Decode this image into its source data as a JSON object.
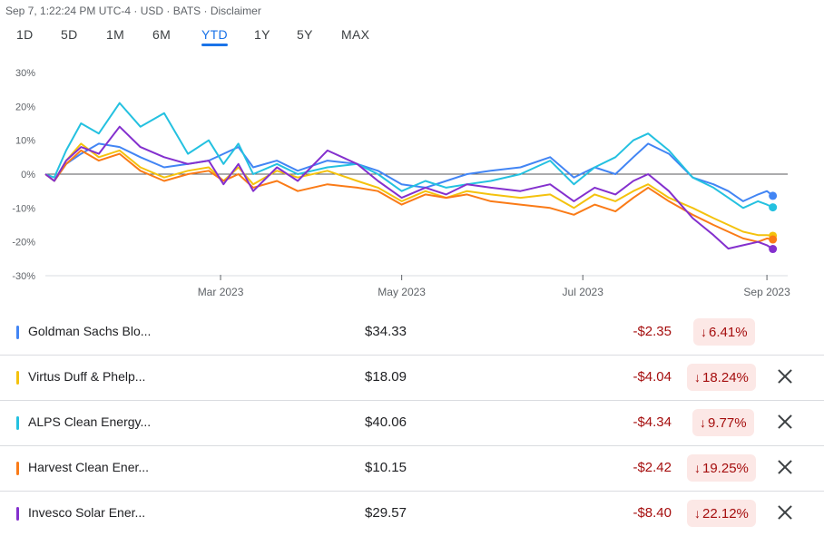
{
  "header": {
    "text": "Sep 7, 1:22:24 PM UTC-4 · USD · BATS · Disclaimer"
  },
  "tabs": [
    {
      "label": "1D"
    },
    {
      "label": "5D"
    },
    {
      "label": "1M"
    },
    {
      "label": "6M"
    },
    {
      "label": "YTD",
      "active": true
    },
    {
      "label": "1Y"
    },
    {
      "label": "5Y"
    },
    {
      "label": "MAX"
    }
  ],
  "rows": [
    {
      "name": "Goldman Sachs Blo...",
      "price": "$34.33",
      "change": "-$2.35",
      "pct": "6.41%",
      "color": "#4285f4",
      "removable": false
    },
    {
      "name": "Virtus Duff & Phelp...",
      "price": "$18.09",
      "change": "-$4.04",
      "pct": "18.24%",
      "color": "#f4c20d",
      "removable": true
    },
    {
      "name": "ALPS Clean Energy...",
      "price": "$40.06",
      "change": "-$4.34",
      "pct": "9.77%",
      "color": "#24c1e0",
      "removable": true
    },
    {
      "name": "Harvest Clean Ener...",
      "price": "$10.15",
      "change": "-$2.42",
      "pct": "19.25%",
      "color": "#fa7b17",
      "removable": true
    },
    {
      "name": "Invesco Solar Ener...",
      "price": "$29.57",
      "change": "-$8.40",
      "pct": "22.12%",
      "color": "#8430ce",
      "removable": true
    }
  ],
  "chart_data": {
    "type": "line",
    "x_ticks": [
      "Mar 2023",
      "May 2023",
      "Jul 2023",
      "Sep 2023"
    ],
    "x_tick_days": [
      59,
      120,
      181,
      243
    ],
    "x_range_days": [
      0,
      250
    ],
    "y_ticks": [
      "30%",
      "20%",
      "10%",
      "0%",
      "-10%",
      "-20%",
      "-30%"
    ],
    "y_tick_values": [
      30,
      20,
      10,
      0,
      -10,
      -20,
      -30
    ],
    "ylim": [
      -30,
      30
    ],
    "series": [
      {
        "name": "Goldman Sachs Blo...",
        "color": "#4285f4",
        "x": [
          0,
          3,
          7,
          12,
          18,
          25,
          32,
          40,
          48,
          55,
          60,
          65,
          70,
          78,
          85,
          95,
          105,
          112,
          120,
          128,
          135,
          142,
          150,
          160,
          170,
          178,
          185,
          192,
          198,
          203,
          210,
          218,
          225,
          230,
          235,
          240,
          243,
          245
        ],
        "y": [
          0,
          -2,
          3,
          6,
          9,
          8,
          5,
          2,
          3,
          4,
          6,
          8,
          2,
          4,
          1,
          4,
          3,
          1,
          -3,
          -4,
          -2,
          0,
          1,
          2,
          5,
          -1,
          2,
          0,
          5,
          9,
          6,
          -1,
          -3,
          -5,
          -8,
          -6,
          -5,
          -6.4
        ]
      },
      {
        "name": "Virtus Duff & Phelp...",
        "color": "#f4c20d",
        "x": [
          0,
          3,
          7,
          12,
          18,
          25,
          32,
          40,
          48,
          55,
          60,
          65,
          70,
          78,
          85,
          95,
          105,
          112,
          120,
          128,
          135,
          142,
          150,
          160,
          170,
          178,
          185,
          192,
          198,
          203,
          210,
          218,
          225,
          230,
          235,
          240,
          243,
          245
        ],
        "y": [
          0,
          -2,
          4,
          9,
          5,
          7,
          2,
          -1,
          1,
          2,
          -2,
          2,
          -3,
          1,
          -1,
          1,
          -2,
          -4,
          -8,
          -5,
          -7,
          -5,
          -6,
          -7,
          -6,
          -10,
          -6,
          -8,
          -5,
          -3,
          -7,
          -10,
          -13,
          -15,
          -17,
          -18,
          -18,
          -18.2
        ]
      },
      {
        "name": "ALPS Clean Energy...",
        "color": "#24c1e0",
        "x": [
          0,
          3,
          7,
          12,
          18,
          25,
          32,
          40,
          48,
          55,
          60,
          65,
          70,
          78,
          85,
          95,
          105,
          112,
          120,
          128,
          135,
          142,
          150,
          160,
          170,
          178,
          185,
          192,
          198,
          203,
          210,
          218,
          225,
          230,
          235,
          240,
          243,
          245
        ],
        "y": [
          0,
          -1,
          7,
          15,
          12,
          21,
          14,
          18,
          6,
          10,
          3,
          9,
          0,
          3,
          0,
          2,
          3,
          0,
          -5,
          -2,
          -4,
          -3,
          -2,
          0,
          4,
          -3,
          2,
          5,
          10,
          12,
          7,
          -1,
          -4,
          -7,
          -10,
          -8,
          -9,
          -9.8
        ]
      },
      {
        "name": "Harvest Clean Ener...",
        "color": "#fa7b17",
        "x": [
          0,
          3,
          7,
          12,
          18,
          25,
          32,
          40,
          48,
          55,
          60,
          65,
          70,
          78,
          85,
          95,
          105,
          112,
          120,
          128,
          135,
          142,
          150,
          160,
          170,
          178,
          185,
          192,
          198,
          203,
          210,
          218,
          225,
          230,
          235,
          240,
          243,
          245
        ],
        "y": [
          0,
          -2,
          3,
          7,
          4,
          6,
          1,
          -2,
          0,
          1,
          -2,
          0,
          -4,
          -2,
          -5,
          -3,
          -4,
          -5,
          -9,
          -6,
          -7,
          -6,
          -8,
          -9,
          -10,
          -12,
          -9,
          -11,
          -7,
          -4,
          -8,
          -12,
          -15,
          -17,
          -19,
          -20,
          -19,
          -19.3
        ]
      },
      {
        "name": "Invesco Solar Ener...",
        "color": "#8430ce",
        "x": [
          0,
          3,
          7,
          12,
          18,
          25,
          32,
          40,
          48,
          55,
          60,
          65,
          70,
          78,
          85,
          95,
          105,
          112,
          120,
          128,
          135,
          142,
          150,
          160,
          170,
          178,
          185,
          192,
          198,
          203,
          210,
          218,
          225,
          230,
          235,
          240,
          243,
          245
        ],
        "y": [
          0,
          -2,
          4,
          8,
          6,
          14,
          8,
          5,
          3,
          4,
          -3,
          3,
          -5,
          2,
          -2,
          7,
          3,
          -2,
          -7,
          -4,
          -6,
          -3,
          -4,
          -5,
          -3,
          -8,
          -4,
          -6,
          -2,
          0,
          -5,
          -13,
          -18,
          -22,
          -21,
          -20,
          -21,
          -22.1
        ]
      }
    ]
  }
}
